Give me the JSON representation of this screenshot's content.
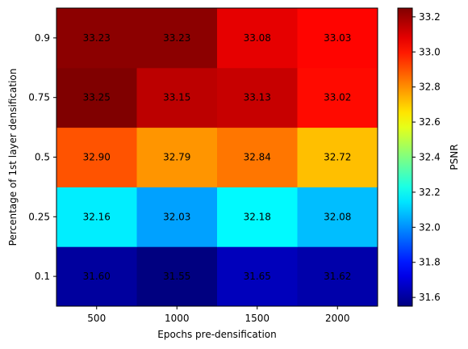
{
  "chart_data": {
    "type": "heatmap",
    "xlabel": "Epochs pre-densification",
    "ylabel": "Percentage of 1st layer densification",
    "x_categories": [
      "500",
      "1000",
      "1500",
      "2000"
    ],
    "y_categories": [
      "0.1",
      "0.25",
      "0.5",
      "0.75",
      "0.9"
    ],
    "values": [
      [
        31.6,
        31.55,
        31.65,
        31.62
      ],
      [
        32.16,
        32.03,
        32.18,
        32.08
      ],
      [
        32.9,
        32.79,
        32.84,
        32.72
      ],
      [
        33.25,
        33.15,
        33.13,
        33.02
      ],
      [
        33.23,
        33.23,
        33.08,
        33.03
      ]
    ],
    "cell_labels": [
      [
        "31.60",
        "31.55",
        "31.65",
        "31.62"
      ],
      [
        "32.16",
        "32.03",
        "32.18",
        "32.08"
      ],
      [
        "32.90",
        "32.79",
        "32.84",
        "32.72"
      ],
      [
        "33.25",
        "33.15",
        "33.13",
        "33.02"
      ],
      [
        "33.23",
        "33.23",
        "33.08",
        "33.03"
      ]
    ],
    "colormap": "jet",
    "color_range": [
      31.55,
      33.25
    ],
    "colorbar": {
      "label": "PSNR",
      "ticks": [
        "31.6",
        "31.8",
        "32.0",
        "32.2",
        "32.4",
        "32.6",
        "32.8",
        "33.0",
        "33.2"
      ]
    }
  }
}
